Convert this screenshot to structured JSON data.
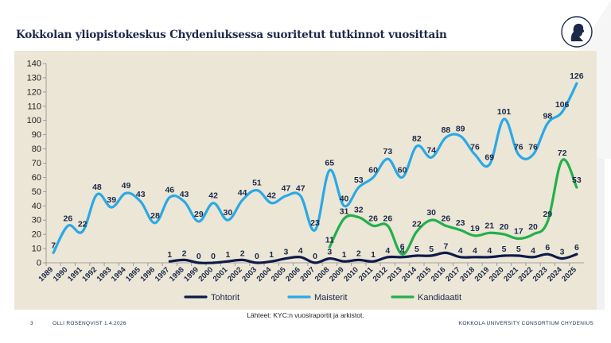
{
  "slide": {
    "title": "Kokkolan yliopistokeskus Chydeniuksessa suoritetut tutkinnot vuosittain",
    "source": "Lähteet: KYC:n vuosiraportit ja arkistot.",
    "footer": {
      "page": "3",
      "author": "OLLI ROSENQVIST 1.4.2026",
      "org": "KOKKOLA UNIVERSITY CONSORTIUM CHYDENIUS"
    }
  },
  "colors": {
    "tohtorit": "#0d1b4a",
    "maisterit": "#29a9e6",
    "kandidaatit": "#22b04b",
    "panel": "#ece6d6",
    "title": "#1c2a4a"
  },
  "chart_data": {
    "type": "line",
    "title": "Kokkolan yliopistokeskus Chydeniuksessa suoritetut tutkinnot vuosittain",
    "xlabel": "",
    "ylabel": "",
    "ylim": [
      0,
      140
    ],
    "yticks": [
      0,
      10,
      20,
      30,
      40,
      50,
      60,
      70,
      80,
      90,
      100,
      110,
      120,
      130,
      140
    ],
    "grid": false,
    "legend_position": "bottom",
    "categories": [
      "1989",
      "1990",
      "1991",
      "1992",
      "1993",
      "1994",
      "1995",
      "1996",
      "1997",
      "1998",
      "1999",
      "2000",
      "2001",
      "2002",
      "2003",
      "2004",
      "2005",
      "2006",
      "2007",
      "2008",
      "2009",
      "2010",
      "2011",
      "2012",
      "2013",
      "2014",
      "2015",
      "2016",
      "2017",
      "2018",
      "2019",
      "2020",
      "2021",
      "2022",
      "2023",
      "2024",
      "2025"
    ],
    "series": [
      {
        "name": "Tohtorit",
        "key": "tohtorit",
        "values": [
          null,
          null,
          null,
          null,
          null,
          null,
          null,
          null,
          1,
          2,
          0,
          0,
          1,
          2,
          0,
          1,
          3,
          4,
          0,
          3,
          1,
          2,
          1,
          4,
          4,
          5,
          5,
          7,
          4,
          4,
          4,
          5,
          5,
          4,
          6,
          3,
          6
        ]
      },
      {
        "name": "Maisterit",
        "key": "maisterit",
        "values": [
          7,
          26,
          22,
          48,
          39,
          49,
          43,
          28,
          46,
          43,
          29,
          42,
          30,
          44,
          51,
          42,
          47,
          47,
          23,
          65,
          40,
          53,
          60,
          73,
          60,
          82,
          74,
          88,
          89,
          76,
          69,
          101,
          76,
          76,
          98,
          106,
          126
        ]
      },
      {
        "name": "Kandidaatit",
        "key": "kandidaatit",
        "values": [
          null,
          null,
          null,
          null,
          null,
          null,
          null,
          null,
          null,
          null,
          null,
          null,
          null,
          null,
          null,
          null,
          null,
          null,
          null,
          11,
          31,
          32,
          26,
          26,
          6,
          22,
          30,
          26,
          23,
          19,
          21,
          20,
          17,
          20,
          29,
          72,
          53
        ]
      }
    ]
  }
}
